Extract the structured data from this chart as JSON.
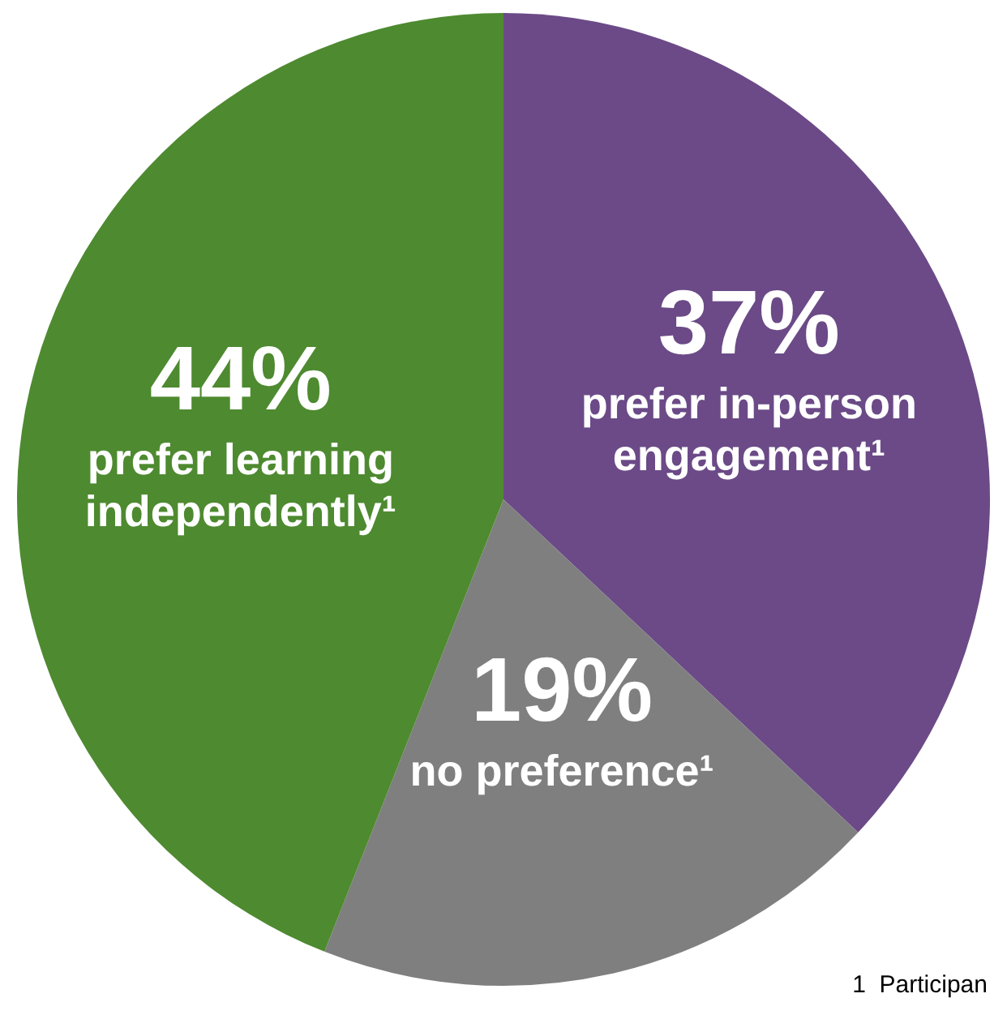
{
  "chart_data": {
    "type": "pie",
    "categories": [
      "prefer in-person engagement¹",
      "no preference¹",
      "prefer learning independently¹"
    ],
    "values": [
      37,
      19,
      44
    ],
    "value_labels": [
      "37%",
      "19%",
      "44%"
    ],
    "colors": [
      "#6b4a87",
      "#7f7f7f",
      "#4e8a30"
    ],
    "legend": false,
    "annotations": [
      "1  Participan"
    ]
  }
}
